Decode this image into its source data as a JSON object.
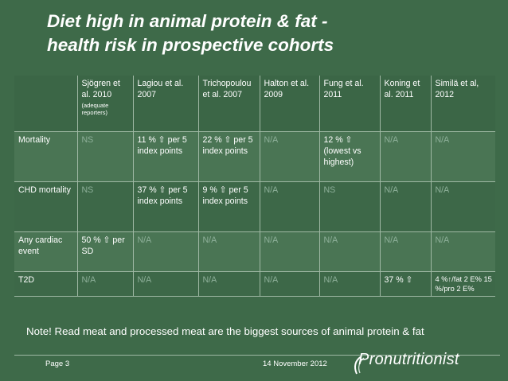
{
  "title_line1": "Diet high in animal protein & fat -",
  "title_line2": "health risk in prospective cohorts",
  "columns": [
    {
      "label": "",
      "sub": ""
    },
    {
      "label": "Sjögren et al. 2010",
      "sub": "(adequate reporters)"
    },
    {
      "label": "Lagiou et al. 2007",
      "sub": ""
    },
    {
      "label": "Trichopoulou et al. 2007",
      "sub": ""
    },
    {
      "label": "Halton et al. 2009",
      "sub": ""
    },
    {
      "label": "Fung et al. 2011",
      "sub": ""
    },
    {
      "label": "Koning et al. 2011",
      "sub": ""
    },
    {
      "label": "Similä et al, 2012",
      "sub": ""
    }
  ],
  "rows": [
    {
      "label": "Mortality",
      "cells": [
        "NS",
        "11 % ⇧ per 5 index points",
        "22 % ⇧ per 5 index points",
        "N/A",
        "12 % ⇧ (lowest vs highest)",
        "N/A",
        "N/A"
      ]
    },
    {
      "label": "CHD mortality",
      "cells": [
        "NS",
        "37 % ⇧ per 5 index points",
        "9 % ⇧ per 5 index points",
        "N/A",
        "NS",
        "N/A",
        "N/A"
      ]
    },
    {
      "label": "Any cardiac event",
      "cells": [
        "50 % ⇧ per SD",
        "N/A",
        "N/A",
        "N/A",
        "N/A",
        "N/A",
        "N/A"
      ]
    },
    {
      "label": "T2D",
      "cells": [
        "N/A",
        "N/A",
        "N/A",
        "N/A",
        "N/A",
        "37 % ⇧",
        "4 %↑/fat 2 E% 15 %/pro 2 E%"
      ]
    }
  ],
  "note": "Note! Read meat and processed meat are the biggest sources of animal protein & fat",
  "footer": {
    "page": "Page 3",
    "date": "14 November 2012",
    "logo": "Pronutritionist"
  }
}
